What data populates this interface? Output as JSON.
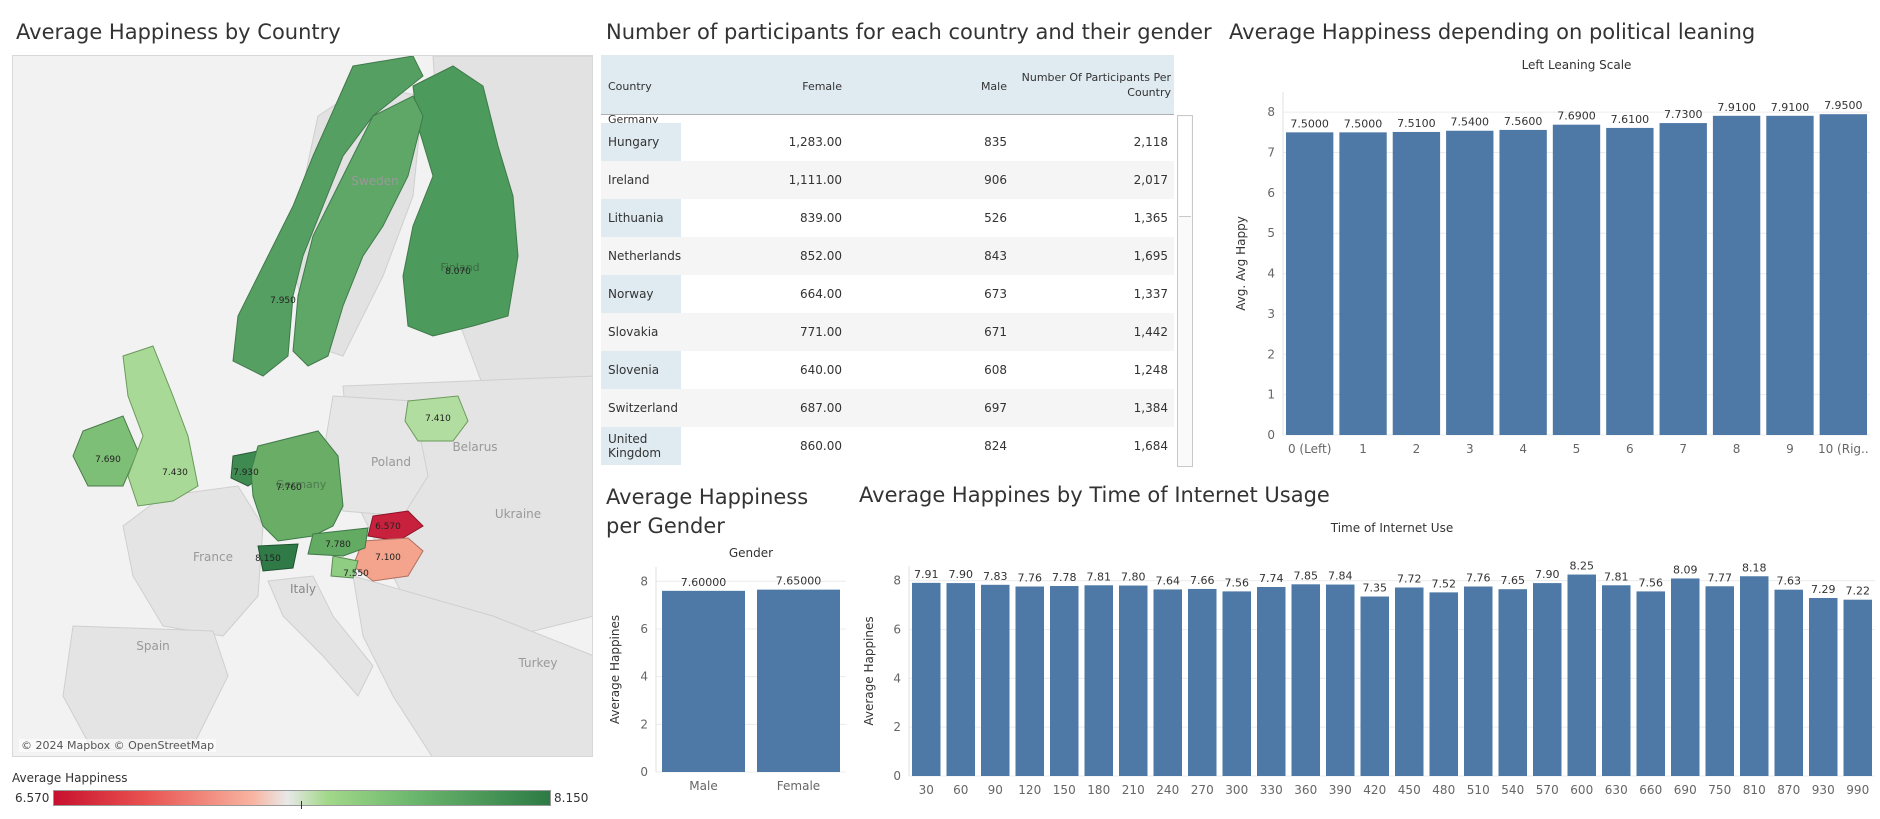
{
  "titles": {
    "map": "Average Happiness by Country",
    "table": "Number of participants for each country and their gender",
    "political": "Average Happiness depending on political leaning",
    "gender": "Average Happiness per Gender",
    "internet": "Average Happines by Time of Internet Usage"
  },
  "map": {
    "credit": "© 2024 Mapbox © OpenStreetMap",
    "place_labels": [
      "Sweden",
      "Poland",
      "Belarus",
      "Ukraine",
      "France",
      "Italy",
      "Spain",
      "Turkey",
      "Germany",
      "Finland"
    ],
    "country_values": [
      {
        "country": "Finland",
        "value": "8.070",
        "color": "#4c9a5c"
      },
      {
        "country": "Norway",
        "value": "7.950",
        "color": "#559f62"
      },
      {
        "country": "Sweden",
        "value": "",
        "color": "#5ea766"
      },
      {
        "country": "Lithuania",
        "value": "7.410",
        "color": "#b2dda0"
      },
      {
        "country": "Ireland",
        "value": "7.690",
        "color": "#7dbf77"
      },
      {
        "country": "United Kingdom",
        "value": "7.430",
        "color": "#a9d996"
      },
      {
        "country": "Netherlands",
        "value": "7.930",
        "color": "#3f8a50"
      },
      {
        "country": "Germany",
        "value": "7.760",
        "color": "#69ad66"
      },
      {
        "country": "Slovakia",
        "value": "6.570",
        "color": "#c8213d"
      },
      {
        "country": "Hungary",
        "value": "7.100",
        "color": "#f4a38c"
      },
      {
        "country": "Austria",
        "value": "7.780",
        "color": "#63aa63"
      },
      {
        "country": "Switzerland",
        "value": "8.150",
        "color": "#2f7a46"
      },
      {
        "country": "Slovenia",
        "value": "7.550",
        "color": "#8fcd82"
      }
    ]
  },
  "legend": {
    "title": "Average Happiness",
    "min": "6.570",
    "max": "8.150"
  },
  "table": {
    "headers": {
      "country": "Country",
      "female": "Female",
      "male": "Male",
      "total_line1": "Number Of Participants Per",
      "total_line2": "Country"
    },
    "partial_row": "Germany",
    "rows": [
      {
        "country": "Hungary",
        "female": "1,283.00",
        "male": "835",
        "total": "2,118"
      },
      {
        "country": "Ireland",
        "female": "1,111.00",
        "male": "906",
        "total": "2,017"
      },
      {
        "country": "Lithuania",
        "female": "839.00",
        "male": "526",
        "total": "1,365"
      },
      {
        "country": "Netherlands",
        "female": "852.00",
        "male": "843",
        "total": "1,695"
      },
      {
        "country": "Norway",
        "female": "664.00",
        "male": "673",
        "total": "1,337"
      },
      {
        "country": "Slovakia",
        "female": "771.00",
        "male": "671",
        "total": "1,442"
      },
      {
        "country": "Slovenia",
        "female": "640.00",
        "male": "608",
        "total": "1,248"
      },
      {
        "country": "Switzerland",
        "female": "687.00",
        "male": "697",
        "total": "1,384"
      },
      {
        "country": "United Kingdom",
        "female": "860.00",
        "male": "824",
        "total": "1,684"
      }
    ]
  },
  "chart_data": [
    {
      "id": "political",
      "type": "bar",
      "title": "Left Leaning Scale",
      "xlabel": "",
      "ylabel": "Avg. Avg Happy",
      "ylim": [
        0,
        8.5
      ],
      "yticks": [
        0,
        1,
        2,
        3,
        4,
        5,
        6,
        7,
        8
      ],
      "categories": [
        "0 (Left)",
        "1",
        "2",
        "3",
        "4",
        "5",
        "6",
        "7",
        "8",
        "9",
        "10 (Rig.."
      ],
      "values": [
        7.5,
        7.5,
        7.51,
        7.54,
        7.56,
        7.69,
        7.61,
        7.73,
        7.91,
        7.91,
        7.95
      ],
      "labels": [
        "7.5000",
        "7.5000",
        "7.5100",
        "7.5400",
        "7.5600",
        "7.6900",
        "7.6100",
        "7.7300",
        "7.9100",
        "7.9100",
        "7.9500"
      ],
      "color": "#4e79a7",
      "grid": true
    },
    {
      "id": "gender",
      "type": "bar",
      "title": "Gender",
      "xlabel": "",
      "ylabel": "Average Happines",
      "ylim": [
        0,
        8.6
      ],
      "yticks": [
        0,
        2,
        4,
        6,
        8
      ],
      "categories": [
        "Male",
        "Female"
      ],
      "values": [
        7.6,
        7.65
      ],
      "labels": [
        "7.60000",
        "7.65000"
      ],
      "color": "#4e79a7",
      "grid": true
    },
    {
      "id": "internet",
      "type": "bar",
      "title": "Time of Internet Use",
      "xlabel": "",
      "ylabel": "Average Happines",
      "ylim": [
        0,
        8.6
      ],
      "yticks": [
        0,
        2,
        4,
        6,
        8
      ],
      "categories": [
        "30",
        "60",
        "90",
        "120",
        "150",
        "180",
        "210",
        "240",
        "270",
        "300",
        "330",
        "360",
        "390",
        "420",
        "450",
        "480",
        "510",
        "540",
        "570",
        "600",
        "630",
        "660",
        "690",
        "750",
        "810",
        "870",
        "930",
        "990"
      ],
      "values": [
        7.91,
        7.9,
        7.83,
        7.76,
        7.78,
        7.81,
        7.8,
        7.64,
        7.66,
        7.56,
        7.74,
        7.85,
        7.84,
        7.35,
        7.72,
        7.52,
        7.76,
        7.65,
        7.9,
        8.25,
        7.81,
        7.56,
        8.09,
        7.77,
        8.18,
        7.63,
        7.29,
        7.22
      ],
      "labels": [
        "7.91",
        "7.90",
        "7.83",
        "7.76",
        "7.78",
        "7.81",
        "7.80",
        "7.64",
        "7.66",
        "7.56",
        "7.74",
        "7.85",
        "7.84",
        "7.35",
        "7.72",
        "7.52",
        "7.76",
        "7.65",
        "7.90",
        "8.25",
        "7.81",
        "7.56",
        "8.09",
        "7.77",
        "8.18",
        "7.63",
        "7.29",
        "7.22"
      ],
      "color": "#4e79a7",
      "grid": true
    }
  ]
}
